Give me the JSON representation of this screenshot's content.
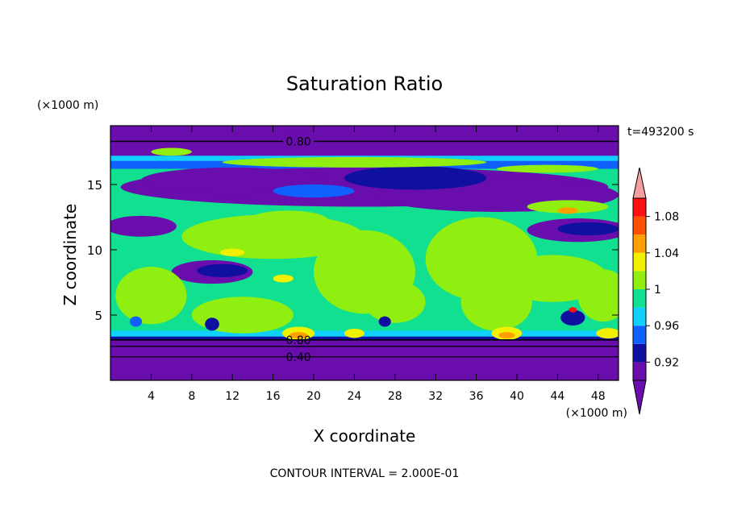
{
  "chart_data": {
    "type": "heatmap",
    "title": "Saturation Ratio",
    "xlabel": "X coordinate",
    "ylabel": "Z coordinate",
    "x_unit_note": "(×1000 m)",
    "y_unit_note": "(×1000 m)",
    "time_label": "t=493200 s",
    "footer": "CONTOUR INTERVAL = 2.000E-01",
    "xlim": [
      0,
      50
    ],
    "ylim": [
      0,
      19.5
    ],
    "x_ticks": [
      4,
      8,
      12,
      16,
      20,
      24,
      28,
      32,
      36,
      40,
      44,
      48
    ],
    "y_ticks": [
      5,
      10,
      15
    ],
    "contour_labels": [
      {
        "text": "0.80",
        "x": 18.5,
        "y": 18.3
      },
      {
        "text": "0.80",
        "x": 18.5,
        "y": 3.1
      },
      {
        "text": "0.40",
        "x": 18.5,
        "y": 1.8
      }
    ],
    "colorbar": {
      "labels": [
        "1.08",
        "1.04",
        "1",
        "0.96",
        "0.92"
      ],
      "levels": [
        0.9,
        0.92,
        0.94,
        0.96,
        0.98,
        1.0,
        1.02,
        1.04,
        1.06,
        1.08,
        1.1
      ],
      "colors": [
        "#6a0dad",
        "#1010a0",
        "#1060ff",
        "#10d0ff",
        "#10e090",
        "#90ee10",
        "#f0f000",
        "#ffa000",
        "#ff5000",
        "#ff1010",
        "#ff9090"
      ],
      "under_color": "#6a0dad",
      "over_color": "#f4a0a0"
    },
    "colors": {
      "below_min": "#6a0dad",
      "saturated": "#90ee10",
      "near_saturated": "#10e090"
    }
  }
}
